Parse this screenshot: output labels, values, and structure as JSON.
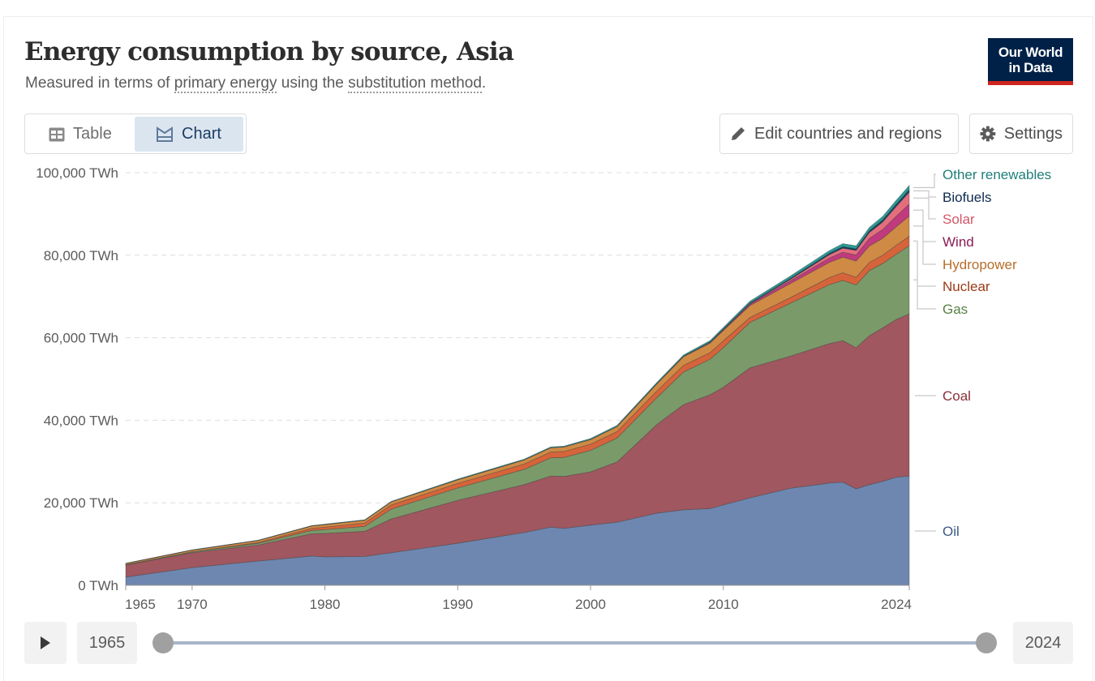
{
  "header": {
    "title": "Energy consumption by source, Asia",
    "subtitle_prefix": "Measured in terms of ",
    "subtitle_link1": "primary energy",
    "subtitle_mid": " using the ",
    "subtitle_link2": "substitution method",
    "subtitle_suffix": ".",
    "logo_line1": "Our World",
    "logo_line2": "in Data"
  },
  "tabs": [
    {
      "label": "Table",
      "icon": "table-icon",
      "active": false
    },
    {
      "label": "Chart",
      "icon": "chart-icon",
      "active": true
    }
  ],
  "toolbar": {
    "edit_label": "Edit countries and regions",
    "edit_icon": "pencil-icon",
    "settings_label": "Settings",
    "settings_icon": "gear-icon"
  },
  "timeline": {
    "play_icon": "play-icon",
    "start_year": "1965",
    "end_year": "2024"
  },
  "chart_data": {
    "type": "area",
    "stacked": true,
    "title": "Energy consumption by source, Asia",
    "ylabel": "",
    "unit": "TWh",
    "ylim": [
      0,
      100000
    ],
    "xlim": [
      1965,
      2024
    ],
    "yticks": [
      0,
      20000,
      40000,
      60000,
      80000,
      100000
    ],
    "ytick_labels": [
      "0 TWh",
      "20,000 TWh",
      "40,000 TWh",
      "60,000 TWh",
      "80,000 TWh",
      "100,000 TWh"
    ],
    "xticks": [
      1965,
      1970,
      1980,
      1990,
      2000,
      2010,
      2024
    ],
    "xtick_labels": [
      "1965",
      "1970",
      "1980",
      "1990",
      "2000",
      "2010",
      "2024"
    ],
    "grid": "horizontal-dashed",
    "legend": "right-inline",
    "x": [
      1965,
      1970,
      1975,
      1979,
      1980,
      1983,
      1985,
      1990,
      1995,
      1997,
      1998,
      2000,
      2002,
      2005,
      2007,
      2009,
      2010,
      2012,
      2015,
      2018,
      2019,
      2020,
      2021,
      2022,
      2023,
      2024
    ],
    "series": [
      {
        "name": "Oil",
        "color": "#6d87b0",
        "label_color": "#3d5a85",
        "values": [
          2000,
          4300,
          5900,
          7100,
          6900,
          7000,
          7900,
          10200,
          12800,
          14100,
          13800,
          14600,
          15300,
          17500,
          18300,
          18600,
          19500,
          21200,
          23500,
          24800,
          25000,
          23400,
          24400,
          25200,
          26200,
          26500
        ]
      },
      {
        "name": "Coal",
        "color": "#a0575f",
        "label_color": "#883039",
        "values": [
          2900,
          3600,
          3900,
          5400,
          5700,
          6100,
          8200,
          10400,
          11600,
          12400,
          12600,
          12900,
          14600,
          21500,
          25500,
          27600,
          28500,
          31500,
          32000,
          33800,
          34300,
          34200,
          36100,
          37200,
          38200,
          39300
        ]
      },
      {
        "name": "Gas",
        "color": "#7a9a6a",
        "label_color": "#578145",
        "values": [
          100,
          200,
          400,
          800,
          900,
          1200,
          2400,
          3000,
          3700,
          4400,
          4600,
          5200,
          5800,
          6500,
          7900,
          8600,
          9600,
          11000,
          12800,
          14300,
          14600,
          15200,
          15800,
          15600,
          15800,
          16500
        ]
      },
      {
        "name": "Nuclear",
        "color": "#d6643a",
        "label_color": "#9a3a16",
        "values": [
          0,
          50,
          200,
          500,
          600,
          800,
          1000,
          1100,
          1300,
          1400,
          1450,
          1500,
          1550,
          1600,
          1600,
          1600,
          1650,
          1200,
          1350,
          1700,
          1850,
          1850,
          1950,
          2000,
          2150,
          2300
        ]
      },
      {
        "name": "Hydropower",
        "color": "#cf8a45",
        "label_color": "#b76e2a",
        "values": [
          300,
          400,
          500,
          600,
          650,
          700,
          750,
          900,
          1000,
          1050,
          1100,
          1150,
          1250,
          1750,
          2100,
          2300,
          2500,
          2900,
          3400,
          3700,
          3800,
          3950,
          4000,
          4100,
          4500,
          4900
        ]
      },
      {
        "name": "Wind",
        "color": "#c13a7e",
        "label_color": "#8b1a57",
        "values": [
          0,
          0,
          0,
          0,
          0,
          0,
          0,
          0,
          0,
          0,
          0,
          0,
          5,
          20,
          60,
          130,
          200,
          350,
          650,
          1050,
          1200,
          1450,
          1850,
          2150,
          2550,
          2900
        ]
      },
      {
        "name": "Solar",
        "color": "#e56e7d",
        "label_color": "#d45666",
        "values": [
          0,
          0,
          0,
          0,
          0,
          0,
          0,
          0,
          0,
          0,
          0,
          0,
          0,
          5,
          10,
          20,
          30,
          80,
          350,
          800,
          950,
          1100,
          1400,
          1800,
          2350,
          2900
        ]
      },
      {
        "name": "Biofuels",
        "color": "#0e3f5e",
        "label_color": "#0f2b4f",
        "values": [
          0,
          0,
          0,
          0,
          0,
          0,
          0,
          0,
          0,
          0,
          0,
          0,
          10,
          40,
          60,
          100,
          120,
          170,
          250,
          350,
          400,
          400,
          450,
          500,
          550,
          600
        ]
      },
      {
        "name": "Other renewables",
        "color": "#2b9a96",
        "label_color": "#1f7f7a",
        "values": [
          20,
          30,
          40,
          60,
          70,
          80,
          100,
          150,
          180,
          200,
          200,
          230,
          250,
          280,
          300,
          350,
          400,
          450,
          550,
          650,
          700,
          750,
          800,
          850,
          950,
          1000
        ]
      }
    ]
  }
}
